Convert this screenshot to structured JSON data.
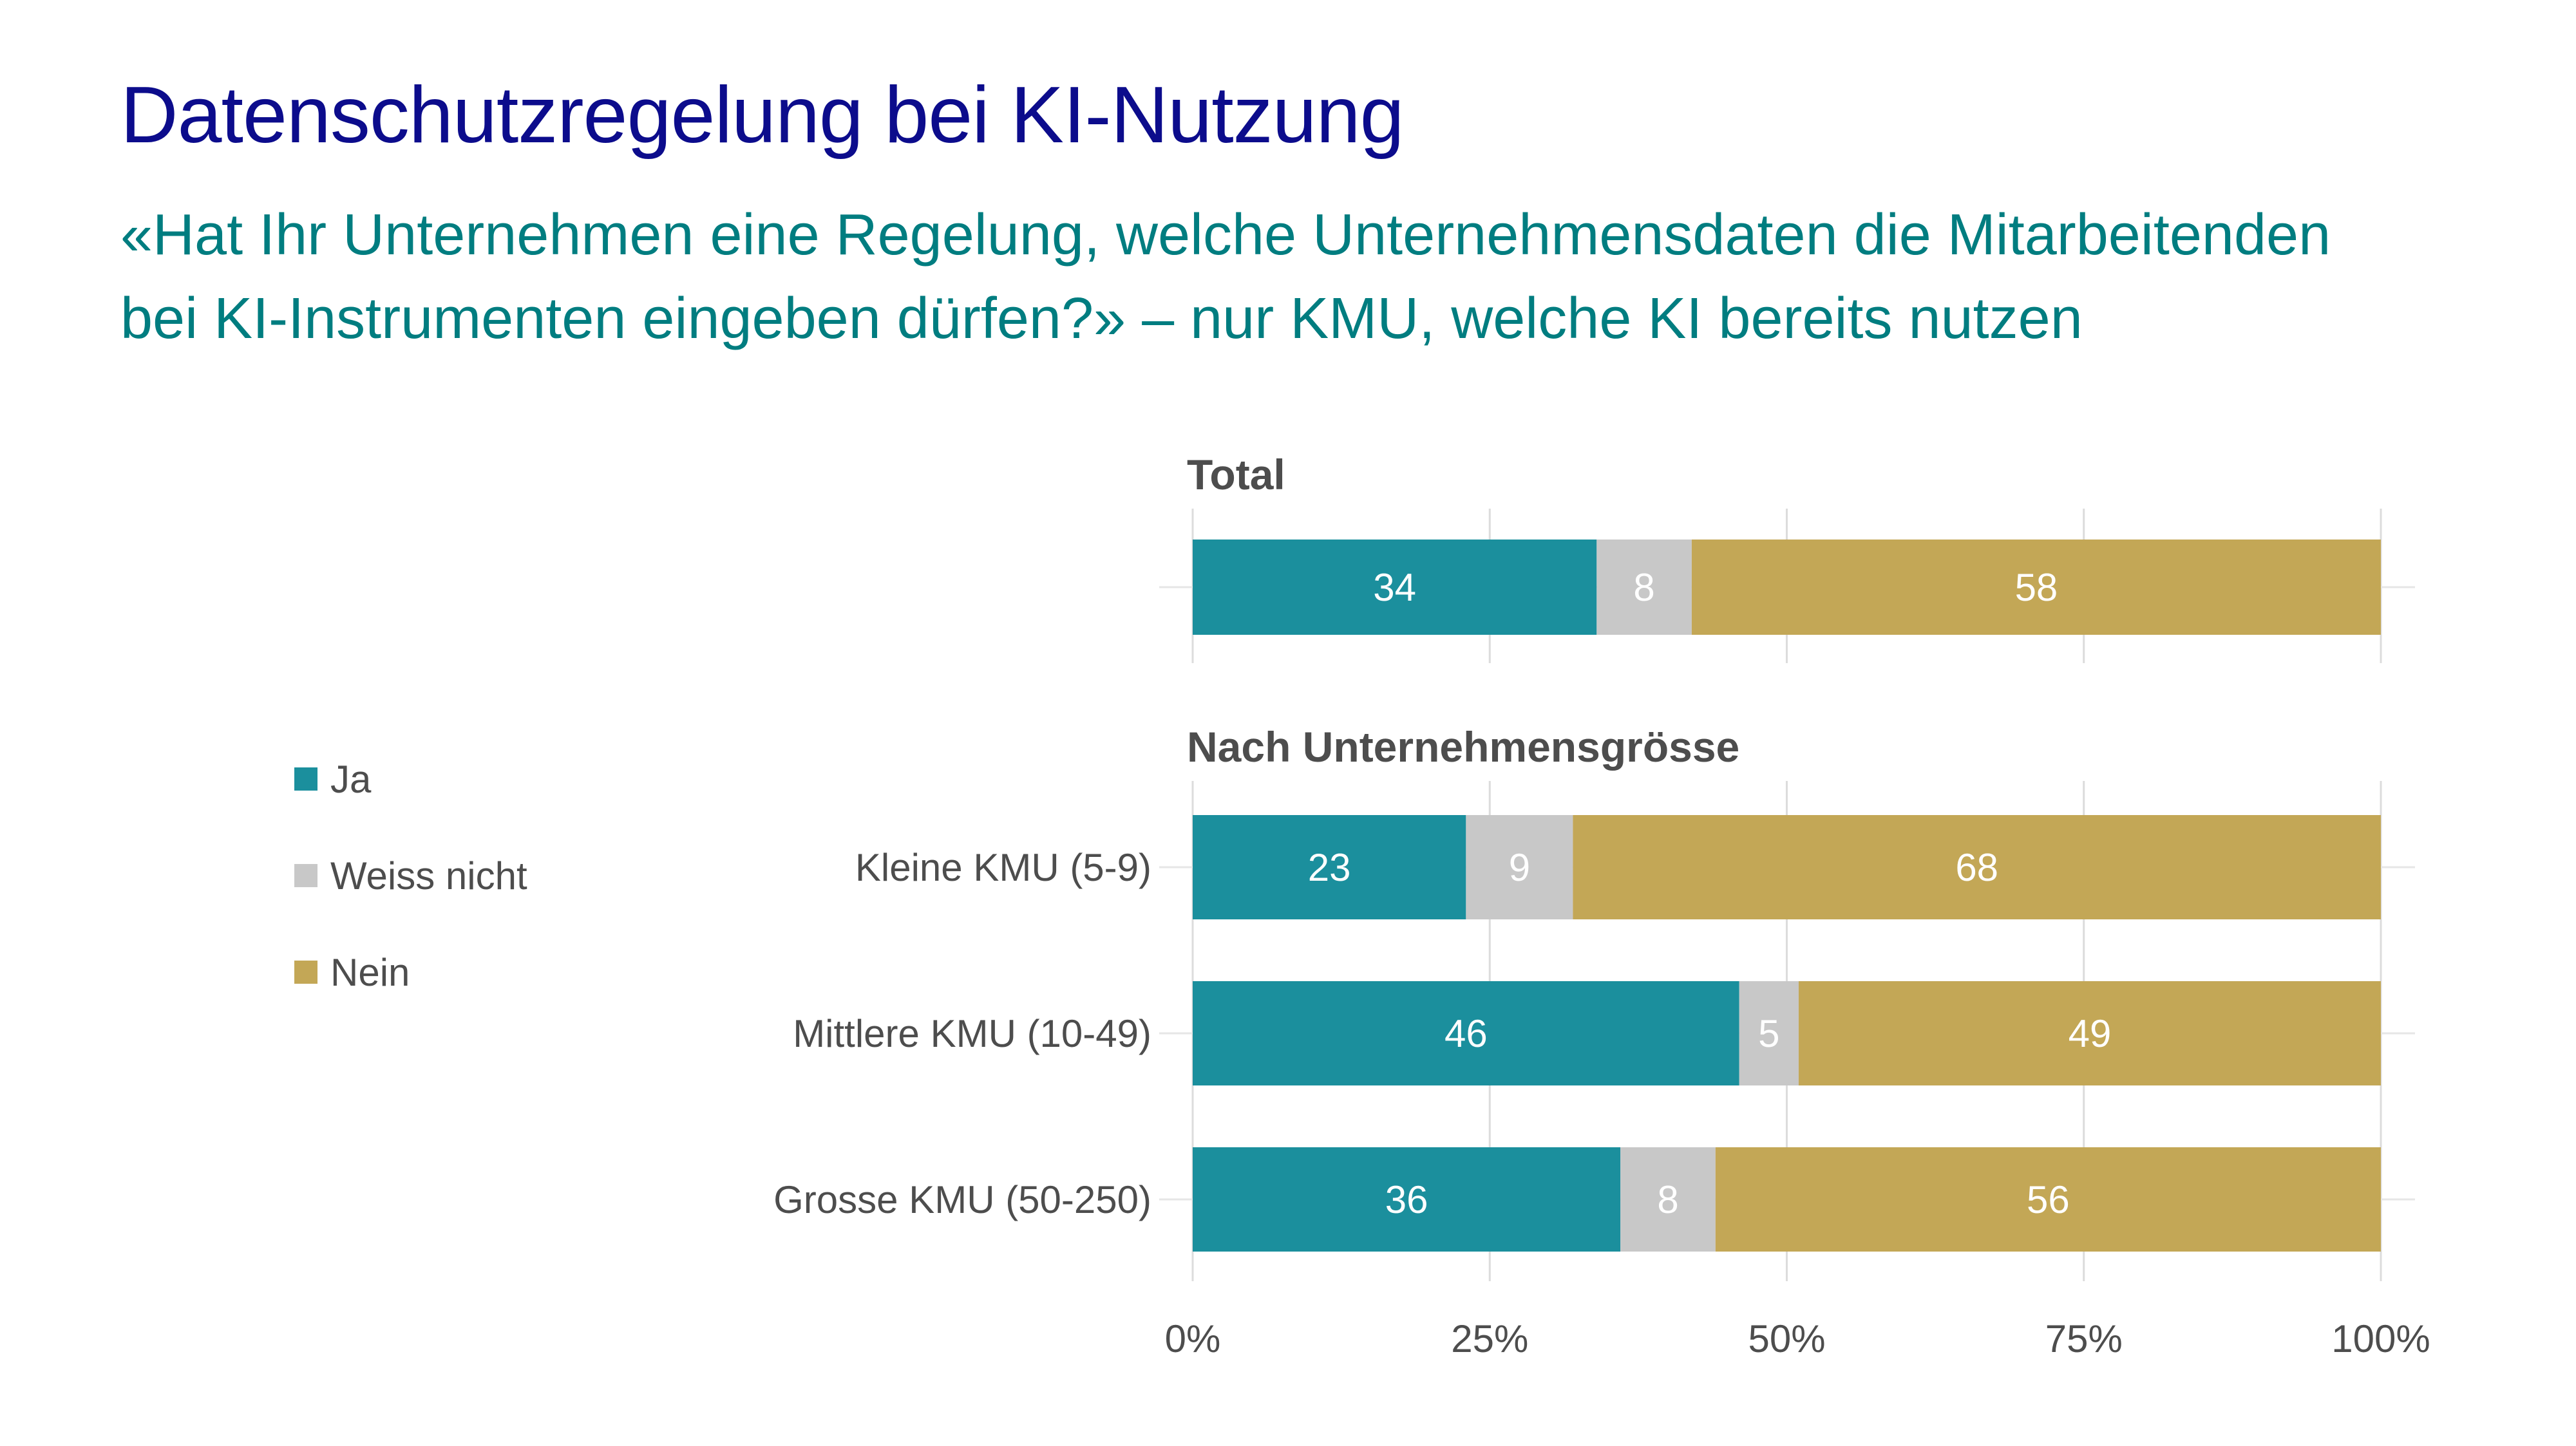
{
  "title": "Datenschutzregelung bei KI-Nutzung",
  "subtitle_lines": [
    "«Hat Ihr Unternehmen eine Regelung, welche Unternehmensdaten die Mitarbeitenden",
    "bei KI-Instrumenten eingeben dürfen?» – nur KMU, welche KI bereits nutzen"
  ],
  "legend": [
    {
      "label": "Ja",
      "color": "#1b8f9d"
    },
    {
      "label": "Weiss nicht",
      "color": "#c8c8c8"
    },
    {
      "label": "Nein",
      "color": "#c3a756"
    }
  ],
  "chart_data": {
    "type": "bar",
    "orientation": "horizontal",
    "stacked": true,
    "xlabel": "",
    "ylabel": "",
    "xlim": [
      0,
      100
    ],
    "x_ticks": [
      "0%",
      "25%",
      "50%",
      "75%",
      "100%"
    ],
    "x_tick_values": [
      0,
      25,
      50,
      75,
      100
    ],
    "grid": true,
    "legend_position": "left",
    "panels": [
      {
        "title": "Total",
        "categories": [
          ""
        ],
        "series": [
          {
            "name": "Ja",
            "color": "#1b8f9d",
            "values": [
              34
            ]
          },
          {
            "name": "Weiss nicht",
            "color": "#c8c8c8",
            "values": [
              8
            ]
          },
          {
            "name": "Nein",
            "color": "#c3a756",
            "values": [
              58
            ]
          }
        ]
      },
      {
        "title": "Nach Unternehmensgrösse",
        "categories": [
          "Kleine KMU (5-9)",
          "Mittlere KMU (10-49)",
          "Grosse KMU (50-250)"
        ],
        "series": [
          {
            "name": "Ja",
            "color": "#1b8f9d",
            "values": [
              23,
              46,
              36
            ]
          },
          {
            "name": "Weiss nicht",
            "color": "#c8c8c8",
            "values": [
              9,
              5,
              8
            ]
          },
          {
            "name": "Nein",
            "color": "#c3a756",
            "values": [
              68,
              49,
              56
            ]
          }
        ]
      }
    ]
  }
}
